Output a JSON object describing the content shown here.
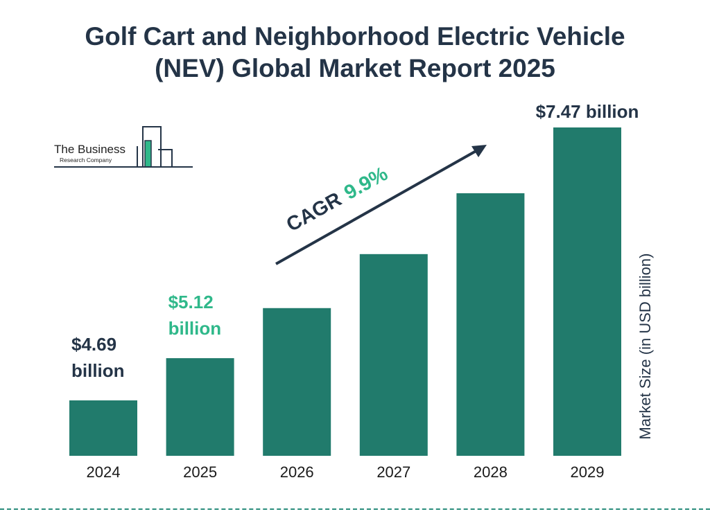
{
  "title_lines": [
    "Golf Cart and Neighborhood Electric Vehicle",
    "(NEV) Global Market Report 2025"
  ],
  "logo": {
    "line1": "The Business",
    "line2": "Research Company"
  },
  "cagr": {
    "label": "CAGR",
    "value": "9.9%"
  },
  "colors": {
    "bar": "#217b6c",
    "dark_text": "#243447",
    "highlight": "#2fb88a",
    "divider": "#2a8c7c"
  },
  "chart_data": {
    "type": "bar",
    "title": "Golf Cart and Neighborhood Electric Vehicle (NEV) Global Market Report 2025",
    "categories": [
      "2024",
      "2025",
      "2026",
      "2027",
      "2028",
      "2029"
    ],
    "values": [
      4.69,
      5.12,
      5.63,
      6.18,
      6.8,
      7.47
    ],
    "ylabel": "Market Size (in USD billion)",
    "xlabel": "",
    "grid": false,
    "data_labels": [
      {
        "index": 0,
        "lines": [
          "$4.69",
          "billion"
        ],
        "highlight": false
      },
      {
        "index": 1,
        "lines": [
          "$5.12",
          "billion"
        ],
        "highlight": true
      },
      {
        "index": 5,
        "lines": [
          "$7.47 billion"
        ],
        "highlight": false
      }
    ]
  }
}
